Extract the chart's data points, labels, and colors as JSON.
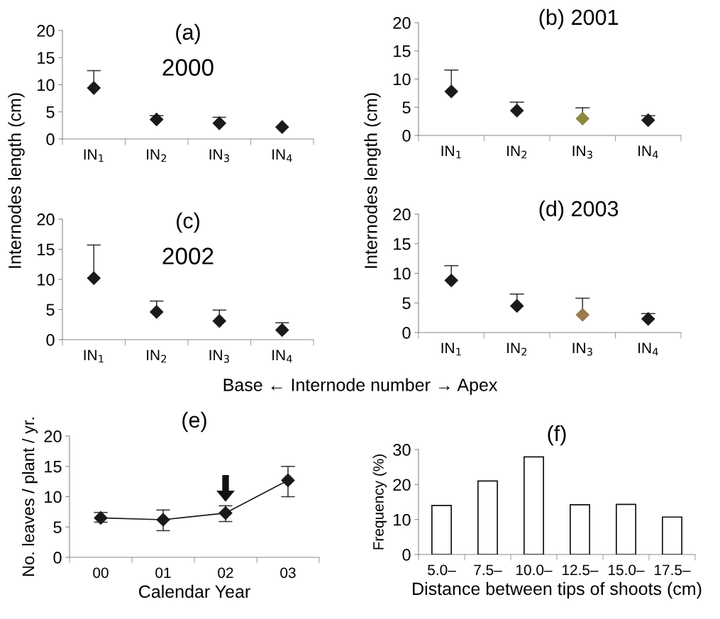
{
  "chart_data": [
    {
      "type": "scatter",
      "title": "(a)",
      "subtitle": "2000",
      "ylabel": "Internodes length (cm)",
      "categories": [
        "IN$_{1}$",
        "IN$_{2}$",
        "IN$_{3}$",
        "IN$_{4}$"
      ],
      "values": [
        9.4,
        3.6,
        2.9,
        2.2
      ],
      "errors": [
        [
          9.4,
          12.6
        ],
        [
          3.6,
          4.3
        ],
        [
          2.9,
          4.0
        ],
        null
      ],
      "colors": [
        "#1a1a1a",
        "#1a1a1a",
        "#1a1a1a",
        "#1a1a1a"
      ],
      "ylim": [
        0,
        20
      ],
      "yticks": [
        0,
        5,
        10,
        15,
        20
      ],
      "marker": "diamond",
      "grid": false
    },
    {
      "type": "scatter",
      "title": "(b) 2001",
      "ylabel": "Internodes length (cm)",
      "categories": [
        "IN$_{1}$",
        "IN$_{2}$",
        "IN$_{3}$",
        "IN$_{4}$"
      ],
      "values": [
        7.8,
        4.4,
        3.0,
        2.7
      ],
      "errors": [
        [
          7.8,
          11.6
        ],
        [
          4.4,
          5.9
        ],
        [
          3.0,
          4.9
        ],
        [
          2.7,
          3.5
        ]
      ],
      "colors": [
        "#1a1a1a",
        "#1a1a1a",
        "#8a8a40",
        "#1a1a1a"
      ],
      "ylim": [
        0,
        20
      ],
      "yticks": [
        0,
        5,
        10,
        15,
        20
      ],
      "marker": "diamond",
      "grid": false
    },
    {
      "type": "scatter",
      "title": "(c)",
      "subtitle": "2002",
      "xlabel": "Base ← Internode number → Apex",
      "categories": [
        "IN$_{1}$",
        "IN$_{2}$",
        "IN$_{3}$",
        "IN$_{4}$"
      ],
      "values": [
        10.2,
        4.6,
        3.1,
        1.6
      ],
      "errors": [
        [
          10.2,
          15.7
        ],
        [
          4.6,
          6.4
        ],
        [
          3.1,
          4.9
        ],
        [
          1.6,
          2.8
        ]
      ],
      "colors": [
        "#1a1a1a",
        "#1a1a1a",
        "#1a1a1a",
        "#1a1a1a"
      ],
      "ylim": [
        0,
        20
      ],
      "yticks": [
        0,
        5,
        10,
        15,
        20
      ],
      "marker": "diamond",
      "grid": false
    },
    {
      "type": "scatter",
      "title": "(d) 2003",
      "categories": [
        "IN$_{1}$",
        "IN$_{2}$",
        "IN$_{3}$",
        "IN$_{4}$"
      ],
      "values": [
        8.8,
        4.5,
        3.0,
        2.3
      ],
      "errors": [
        [
          8.8,
          11.3
        ],
        [
          4.5,
          6.5
        ],
        [
          3.0,
          5.8
        ],
        [
          2.3,
          3.2
        ]
      ],
      "colors": [
        "#1a1a1a",
        "#1a1a1a",
        "#9a7a50",
        "#1a1a1a"
      ],
      "ylim": [
        0,
        20
      ],
      "yticks": [
        0,
        5,
        10,
        15,
        20
      ],
      "marker": "diamond",
      "grid": false
    },
    {
      "type": "line",
      "title": "(e)",
      "xlabel": "Calendar Year",
      "ylabel": "No. leaves / plant / yr.",
      "categories": [
        "00",
        "01",
        "02",
        "03"
      ],
      "values": [
        6.5,
        6.2,
        7.3,
        12.7
      ],
      "errors": [
        [
          5.8,
          7.4
        ],
        [
          4.4,
          7.8
        ],
        [
          5.9,
          8.5
        ],
        [
          10.0,
          15.0
        ]
      ],
      "colors": [
        "#1a1a1a",
        "#1a1a1a",
        "#1a1a1a",
        "#1a1a1a"
      ],
      "ylim": [
        0,
        20
      ],
      "yticks": [
        0,
        5,
        10,
        15,
        20
      ],
      "marker": "diamond",
      "line_style": "solid",
      "grid": false
    },
    {
      "type": "bar",
      "title": "(f)",
      "xlabel": "Distance between tips of shoots (cm)",
      "ylabel": "Frequency (%)",
      "categories": [
        "5.0–",
        "7.5–",
        "10.0–",
        "12.5–",
        "15.0–",
        "17.5–"
      ],
      "values": [
        14.0,
        21.0,
        27.9,
        14.2,
        14.3,
        10.7
      ],
      "color": "#ffffff",
      "ylim": [
        0,
        30
      ],
      "yticks": [
        0,
        10,
        20,
        30
      ],
      "grid": false
    }
  ]
}
